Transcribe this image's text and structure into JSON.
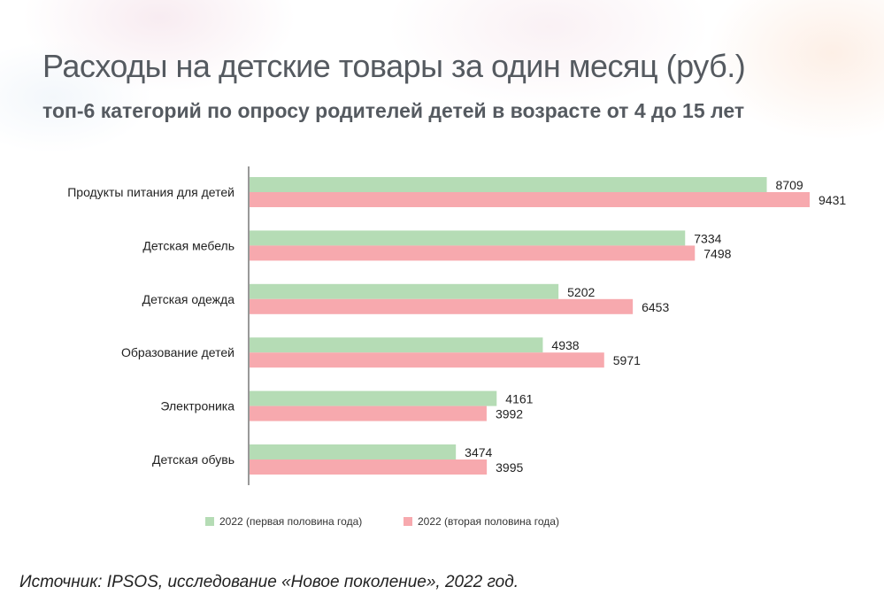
{
  "title": "Расходы на детские товары за один месяц (руб.)",
  "subtitle": "топ-6 категорий по опросу родителей детей в возрасте от 4 до 15 лет",
  "source": "Источник: IPSOS, исследование «Новое поколение», 2022 год.",
  "colors": {
    "series1": "#b5dcb5",
    "series2": "#f7a9ae",
    "axis": "#333333",
    "text": "#222222"
  },
  "chart_data": {
    "type": "bar",
    "orientation": "horizontal",
    "categories": [
      "Продукты питания для детей",
      "Детская мебель",
      "Детская одежда",
      "Образование детей",
      "Электроника",
      "Детская обувь"
    ],
    "series": [
      {
        "name": "2022 (первая половина года)",
        "values": [
          8709,
          7334,
          5202,
          4938,
          4161,
          3474
        ]
      },
      {
        "name": "2022 (вторая половина года)",
        "values": [
          9431,
          7498,
          6453,
          5971,
          3992,
          3995
        ]
      }
    ],
    "xlim": [
      0,
      9431
    ],
    "grid": false,
    "legend_position": "bottom"
  }
}
